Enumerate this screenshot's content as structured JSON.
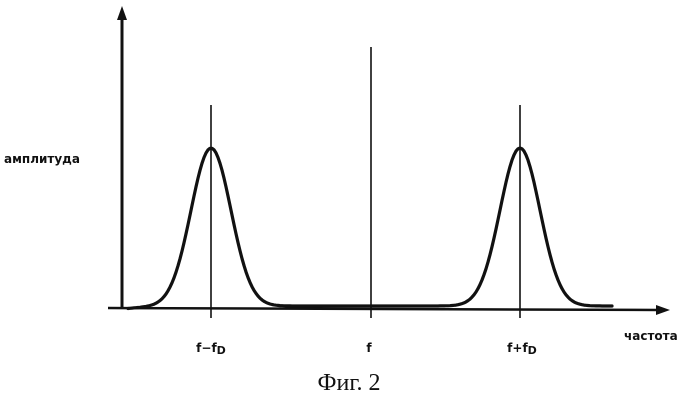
{
  "figure": {
    "y_axis_label": "амплитуда",
    "x_axis_label": "частота",
    "caption": "Фиг. 2",
    "line_color": "#111111",
    "markers": [
      {
        "id": "left",
        "label_main": "f−f",
        "label_sub": "D",
        "position": "f-fD"
      },
      {
        "id": "center",
        "label_main": "f",
        "label_sub": "",
        "position": "f"
      },
      {
        "id": "right",
        "label_main": "f+f",
        "label_sub": "D",
        "position": "f+fD"
      }
    ],
    "peaks": [
      {
        "at": "f-fD",
        "relative_height": 1.0
      },
      {
        "at": "f+fD",
        "relative_height": 1.0
      }
    ]
  }
}
